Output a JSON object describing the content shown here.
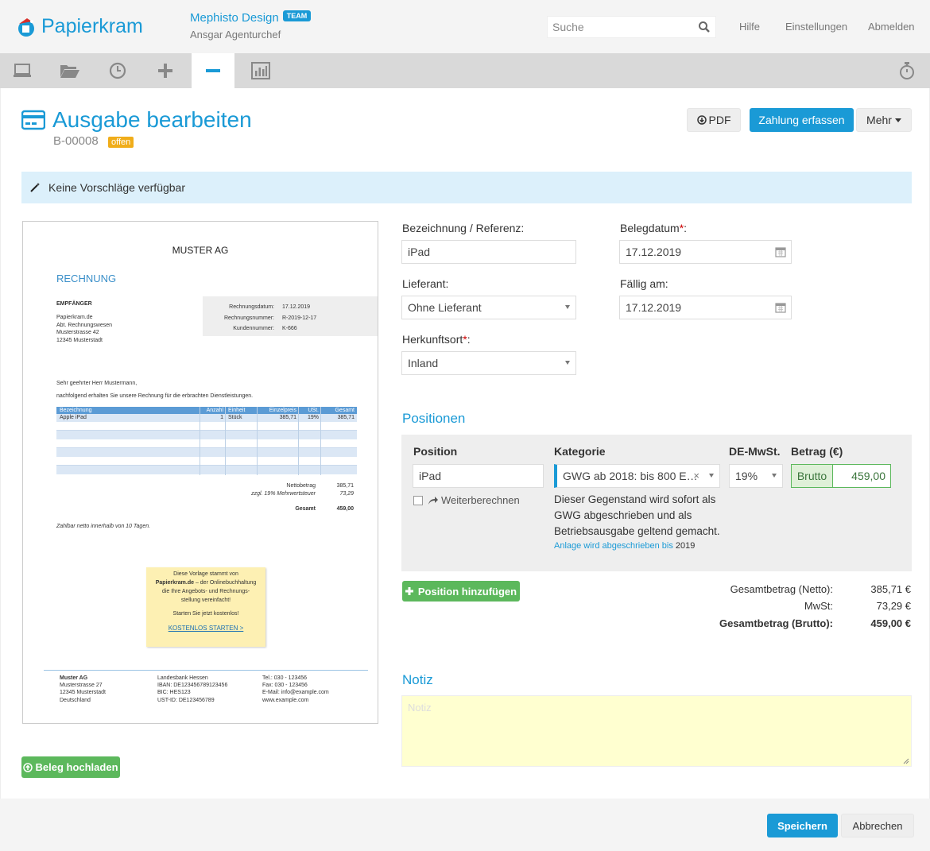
{
  "header": {
    "logo_text": "Papierkram",
    "company_name": "Mephisto Design",
    "team_badge": "TEAM",
    "user_name": "Ansgar Agenturchef",
    "search_placeholder": "Suche",
    "links": [
      "Hilfe",
      "Einstellungen",
      "Abmelden"
    ]
  },
  "tabs": [
    "dashboard-icon",
    "folder-icon",
    "clock-icon",
    "plus-icon",
    "minus-icon",
    "chart-icon"
  ],
  "timer_icon": "stopwatch-icon",
  "page": {
    "title": "Ausgabe bearbeiten",
    "doc_number": "B-00008",
    "status": "offen",
    "pdf_button": "PDF",
    "pay_button": "Zahlung erfassen",
    "more_button": "Mehr",
    "alert": "Keine Vorschläge verfügbar",
    "upload_button": "Beleg hochladen"
  },
  "preview": {
    "company": "MUSTER AG",
    "heading": "RECHNUNG",
    "recipient_label": "EMPFÄNGER",
    "recipient_lines": [
      "Papierkram.de",
      "Abt. Rechnungswesen",
      "Musterstrasse 42",
      "12345 Musterstadt"
    ],
    "meta": [
      {
        "label": "Rechnungsdatum:",
        "value": "17.12.2019"
      },
      {
        "label": "Rechnungsnummer:",
        "value": "R-2019-12-17"
      },
      {
        "label": "Kundennummer:",
        "value": "K-666"
      }
    ],
    "greeting": "Sehr geehrter Herr Mustermann,",
    "intro": "nachfolgend erhalten Sie unsere Rechnung für die erbrachten Dienstleistungen.",
    "table_headers": [
      "Bezeichnung",
      "Anzahl",
      "Einheit",
      "Einzelpreis",
      "USt.",
      "Gesamt"
    ],
    "table_row": [
      "Apple iPad",
      "1",
      "Stück",
      "385,71",
      "19%",
      "385,71"
    ],
    "net_label": "Nettobetrag",
    "net_value": "385,71",
    "vat_label": "zzgl. 19% Mehrwertsteuer",
    "vat_value": "73,29",
    "total_label": "Gesamt",
    "total_value": "459,00",
    "terms": "Zahlbar netto innerhalb von 10 Tagen.",
    "note_line1": "Diese Vorlage stammt von",
    "note_brand": "Papierkram.de",
    "note_line2": " – der Onlinebuchhaltung",
    "note_line3": "die Ihre Angebots- und Rechnungs-",
    "note_line4": "stellung vereinfacht!",
    "note_line5": "Starten Sie jetzt kostenlos!",
    "note_link": "KOSTENLOS STARTEN >",
    "footer_col1": [
      "Muster AG",
      "Musterstrasse 27",
      "12345 Musterstadt",
      "Deutschland"
    ],
    "footer_col2": [
      "Landesbank Hessen",
      "IBAN: DE123456789123456",
      "BIC:     HES123",
      "UST-ID: DE123456789"
    ],
    "footer_col3": [
      "Tel.:  030 - 123456",
      "Fax:  030 - 123456",
      "E-Mail: info@example.com",
      "www.example.com"
    ]
  },
  "form": {
    "reference_label": "Bezeichnung / Referenz:",
    "reference_value": "iPad",
    "date_label": "Belegdatum",
    "date_value": "17.12.2019",
    "supplier_label": "Lieferant:",
    "supplier_value": "Ohne Lieferant",
    "due_label": "Fällig am:",
    "due_value": "17.12.2019",
    "origin_label": "Herkunftsort",
    "origin_value": "Inland",
    "required_mark": "*",
    "colon": ":"
  },
  "positions": {
    "title": "Positionen",
    "col_position": "Position",
    "col_category": "Kategorie",
    "col_vat": "DE-MwSt.",
    "col_amount": "Betrag (€)",
    "position_value": "iPad",
    "category_value": "GWG ab 2018: bis 800 E…",
    "vat_value": "19%",
    "amount_mode": "Brutto",
    "amount_value": "459,00",
    "recalc_label": "Weiterberechnen",
    "category_info": "Dieser Gegenstand wird sofort als GWG abgeschrieben und als Betriebsausgabe geltend gemacht.",
    "depreciation_link": "Anlage wird abgeschrieben bis",
    "depreciation_year": "2019",
    "add_button": "Position hinzufügen"
  },
  "totals": {
    "net_label": "Gesamtbetrag (Netto):",
    "net_value": "385,71 €",
    "vat_label": "MwSt:",
    "vat_value": "73,29 €",
    "gross_label": "Gesamtbetrag (Brutto):",
    "gross_value": "459,00 €"
  },
  "notes": {
    "title": "Notiz",
    "placeholder": "Notiz"
  },
  "footer": {
    "save_button": "Speichern",
    "cancel_button": "Abbrechen"
  },
  "colors": {
    "accent": "#1a9ad6",
    "status": "#f0ad1a",
    "success": "#5cb85c",
    "notes_bg": "#ffffd0"
  }
}
